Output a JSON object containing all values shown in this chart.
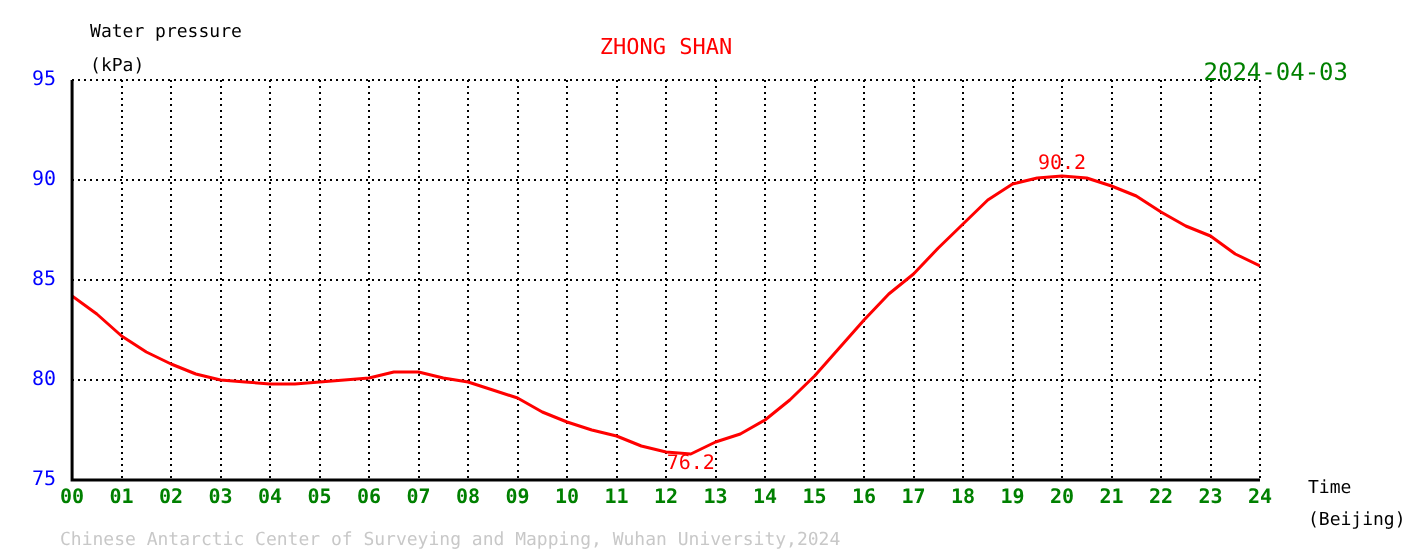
{
  "chart_data": {
    "type": "line",
    "title": "ZHONG SHAN",
    "subtitle": "2024-04-03",
    "ylabel": "Water pressure\n(kPa)",
    "xlabel": "Time\n(Beijing)",
    "x": [
      0,
      0.5,
      1,
      1.5,
      2,
      2.5,
      3,
      3.5,
      4,
      4.5,
      5,
      5.5,
      6,
      6.5,
      7,
      7.5,
      8,
      8.5,
      9,
      9.5,
      10,
      10.5,
      11,
      11.5,
      12,
      12.5,
      13,
      13.5,
      14,
      14.5,
      15,
      15.5,
      16,
      16.5,
      17,
      17.5,
      18,
      18.5,
      19,
      19.5,
      20,
      20.5,
      21,
      21.5,
      22,
      22.5,
      23,
      23.5,
      24
    ],
    "series": [
      {
        "color": "#ff0000",
        "values": [
          84.2,
          83.3,
          82.2,
          81.4,
          80.8,
          80.3,
          80.0,
          79.9,
          79.8,
          79.8,
          79.9,
          80.0,
          80.1,
          80.4,
          80.4,
          80.1,
          79.9,
          79.5,
          79.1,
          78.4,
          77.9,
          77.5,
          77.2,
          76.7,
          76.4,
          76.3,
          76.9,
          77.3,
          78.0,
          79.0,
          80.2,
          81.6,
          83.0,
          84.3,
          85.3,
          86.6,
          87.8,
          89.0,
          89.8,
          90.1,
          90.2,
          90.1,
          89.7,
          89.2,
          88.4,
          87.7,
          87.2,
          86.3,
          85.7
        ]
      }
    ],
    "xlim": [
      0,
      24
    ],
    "ylim": [
      75,
      95
    ],
    "xticks": [
      {
        "value": 0,
        "label": "00"
      },
      {
        "value": 1,
        "label": "01"
      },
      {
        "value": 2,
        "label": "02"
      },
      {
        "value": 3,
        "label": "03"
      },
      {
        "value": 4,
        "label": "04"
      },
      {
        "value": 5,
        "label": "05"
      },
      {
        "value": 6,
        "label": "06"
      },
      {
        "value": 7,
        "label": "07"
      },
      {
        "value": 8,
        "label": "08"
      },
      {
        "value": 9,
        "label": "09"
      },
      10,
      11,
      12,
      13,
      14,
      15,
      16,
      17,
      18,
      19,
      20,
      21,
      22,
      23,
      24
    ],
    "yticks": [
      75,
      80,
      85,
      90,
      95
    ],
    "annotations": [
      {
        "text": "90.2",
        "x": 20,
        "y": 90.2
      },
      {
        "text": "76.2",
        "x": 12.5,
        "y": 76.2
      },
      "Chinese Antarctic Center of Surveying and Mapping, Wuhan University,2024"
    ],
    "grid": true,
    "legend": false,
    "marker": "none",
    "line_style": "solid"
  }
}
